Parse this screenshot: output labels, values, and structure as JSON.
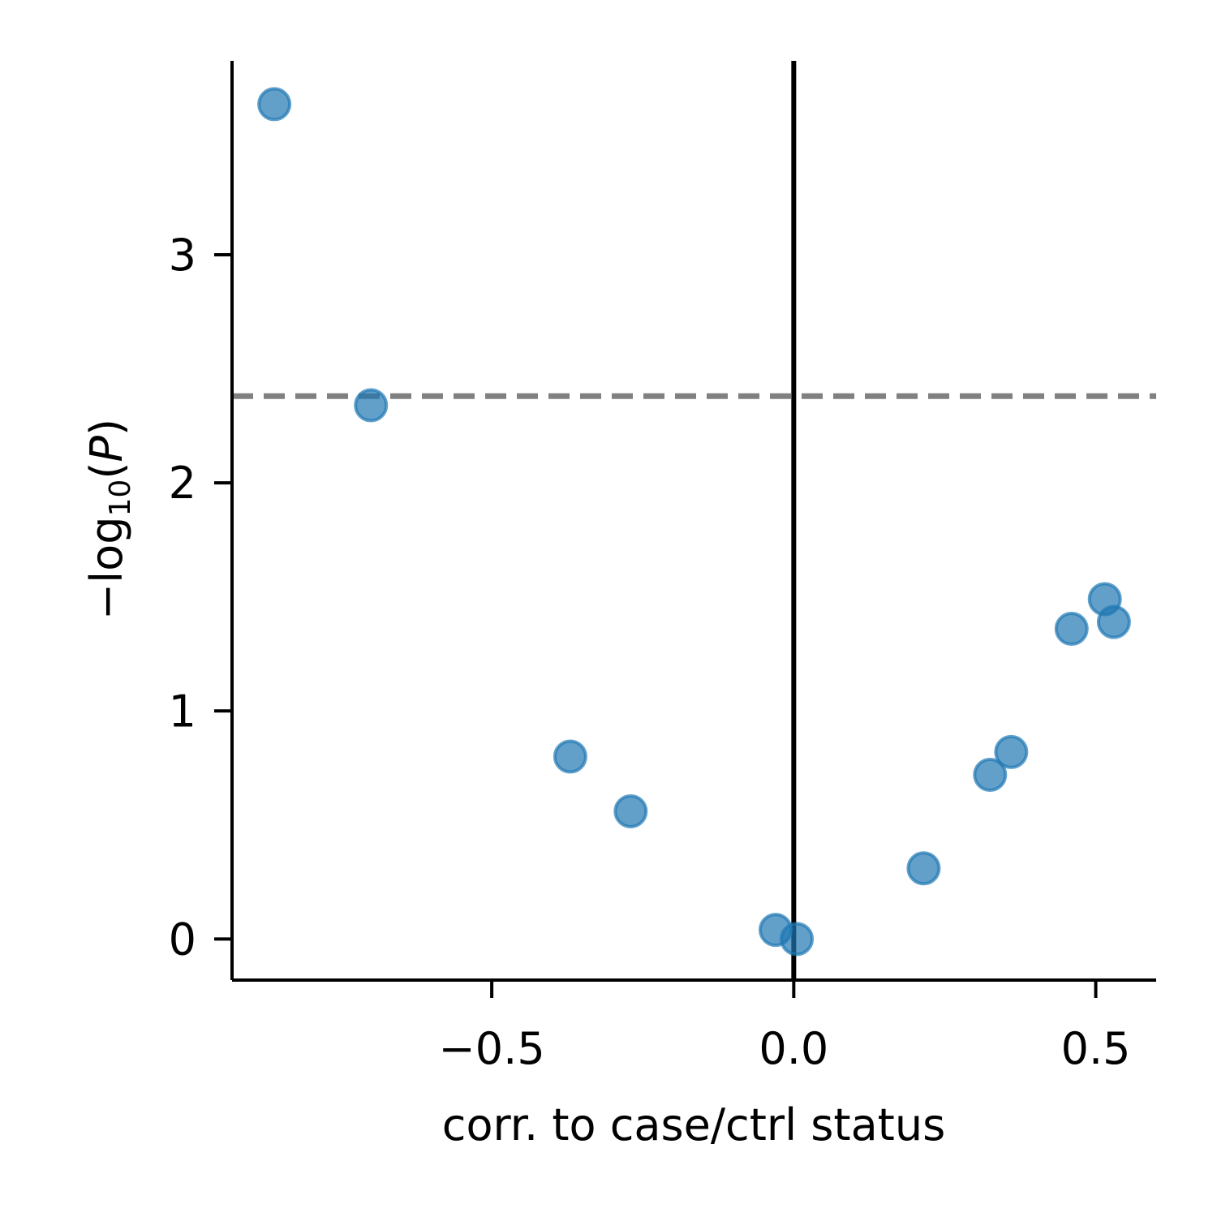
{
  "chart_data": {
    "type": "scatter",
    "xlabel": "corr. to case/ctrl status",
    "ylabel": {
      "prefix": "−log",
      "subscript": "10",
      "open": "(",
      "var": "P",
      "close": ")"
    },
    "xlim": [
      -0.93,
      0.6
    ],
    "ylim": [
      -0.18,
      3.85
    ],
    "xticks": [
      -0.5,
      0.0,
      0.5
    ],
    "xtick_labels": [
      "−0.5",
      "0.0",
      "0.5"
    ],
    "yticks": [
      0,
      1,
      2,
      3
    ],
    "ytick_labels": [
      "0",
      "1",
      "2",
      "3"
    ],
    "grid": false,
    "threshold_y": 2.38,
    "reference_x": 0.0,
    "colors": {
      "point": "#1f77b4",
      "threshold": "#808080",
      "reference": "#000000",
      "axis": "#000000"
    },
    "points": [
      {
        "x": -0.86,
        "y": 3.66
      },
      {
        "x": -0.7,
        "y": 2.34
      },
      {
        "x": -0.37,
        "y": 0.8
      },
      {
        "x": -0.27,
        "y": 0.56
      },
      {
        "x": -0.03,
        "y": 0.04
      },
      {
        "x": 0.005,
        "y": 0.0
      },
      {
        "x": 0.215,
        "y": 0.31
      },
      {
        "x": 0.325,
        "y": 0.72
      },
      {
        "x": 0.36,
        "y": 0.82
      },
      {
        "x": 0.46,
        "y": 1.36
      },
      {
        "x": 0.515,
        "y": 1.49
      },
      {
        "x": 0.53,
        "y": 1.39
      }
    ]
  }
}
